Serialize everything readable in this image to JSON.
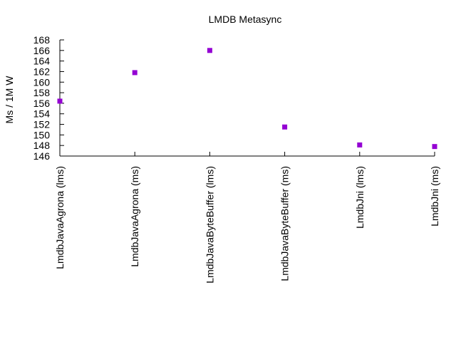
{
  "chart_data": {
    "type": "scatter",
    "title": "LMDB Metasync",
    "xlabel": "",
    "ylabel": "Ms / 1M W",
    "categories": [
      "LmdbJavaAgrona (lms)",
      "LmdbJavaAgrona (ms)",
      "LmdbJavaByteBuffer (lms)",
      "LmdbJavaByteBuffer (ms)",
      "LmdbJni (lms)",
      "LmdbJni (ms)"
    ],
    "values": [
      156.4,
      161.8,
      166.0,
      151.5,
      148.1,
      147.8
    ],
    "ylim": [
      146,
      168
    ],
    "yticks": [
      146,
      148,
      150,
      152,
      154,
      156,
      158,
      160,
      162,
      164,
      166,
      168
    ],
    "marker_color": "#9400d3",
    "grid": false,
    "legend": "none"
  }
}
